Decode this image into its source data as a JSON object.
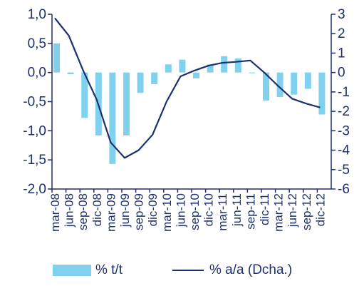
{
  "chart_data": {
    "type": "bar",
    "categories": [
      "mar-08",
      "jun-08",
      "sep-08",
      "dic-08",
      "mar-09",
      "jun-09",
      "sep-09",
      "dic-09",
      "mar-10",
      "jun-10",
      "sep-10",
      "dic-10",
      "mar-11",
      "jun-11",
      "sep-11",
      "dic-11",
      "mar-12",
      "jun-12",
      "sep-12",
      "dic-12"
    ],
    "series": [
      {
        "name": "% t/t",
        "type": "bar",
        "axis": "left",
        "color": "#7fd1ee",
        "values": [
          0.5,
          -0.03,
          -0.78,
          -1.08,
          -1.57,
          -1.08,
          -0.35,
          -0.2,
          0.14,
          0.22,
          -0.1,
          0.14,
          0.28,
          0.24,
          -0.01,
          -0.48,
          -0.42,
          -0.38,
          -0.28,
          -0.72
        ]
      },
      {
        "name": "% a/a (Dcha.)",
        "type": "line",
        "axis": "right",
        "color": "#1d2f6f",
        "values": [
          2.8,
          1.9,
          0.15,
          -1.4,
          -3.6,
          -4.4,
          -4.0,
          -3.2,
          -1.5,
          -0.2,
          0.1,
          0.35,
          0.5,
          0.55,
          0.62,
          0.0,
          -0.7,
          -1.35,
          -1.6,
          -1.8
        ]
      }
    ],
    "ylim": [
      -2.0,
      1.0
    ],
    "yticks": [
      "1,0",
      "0,5",
      "0,0",
      "-0,5",
      "-1,0",
      "-1,5",
      "-2,0"
    ],
    "y2lim": [
      -6,
      3
    ],
    "y2ticks": [
      "3",
      "2",
      "1",
      "0",
      "-1",
      "-2",
      "-3",
      "-4",
      "-5",
      "-6"
    ],
    "legend": {
      "placement": "bottom"
    },
    "grid": false
  }
}
